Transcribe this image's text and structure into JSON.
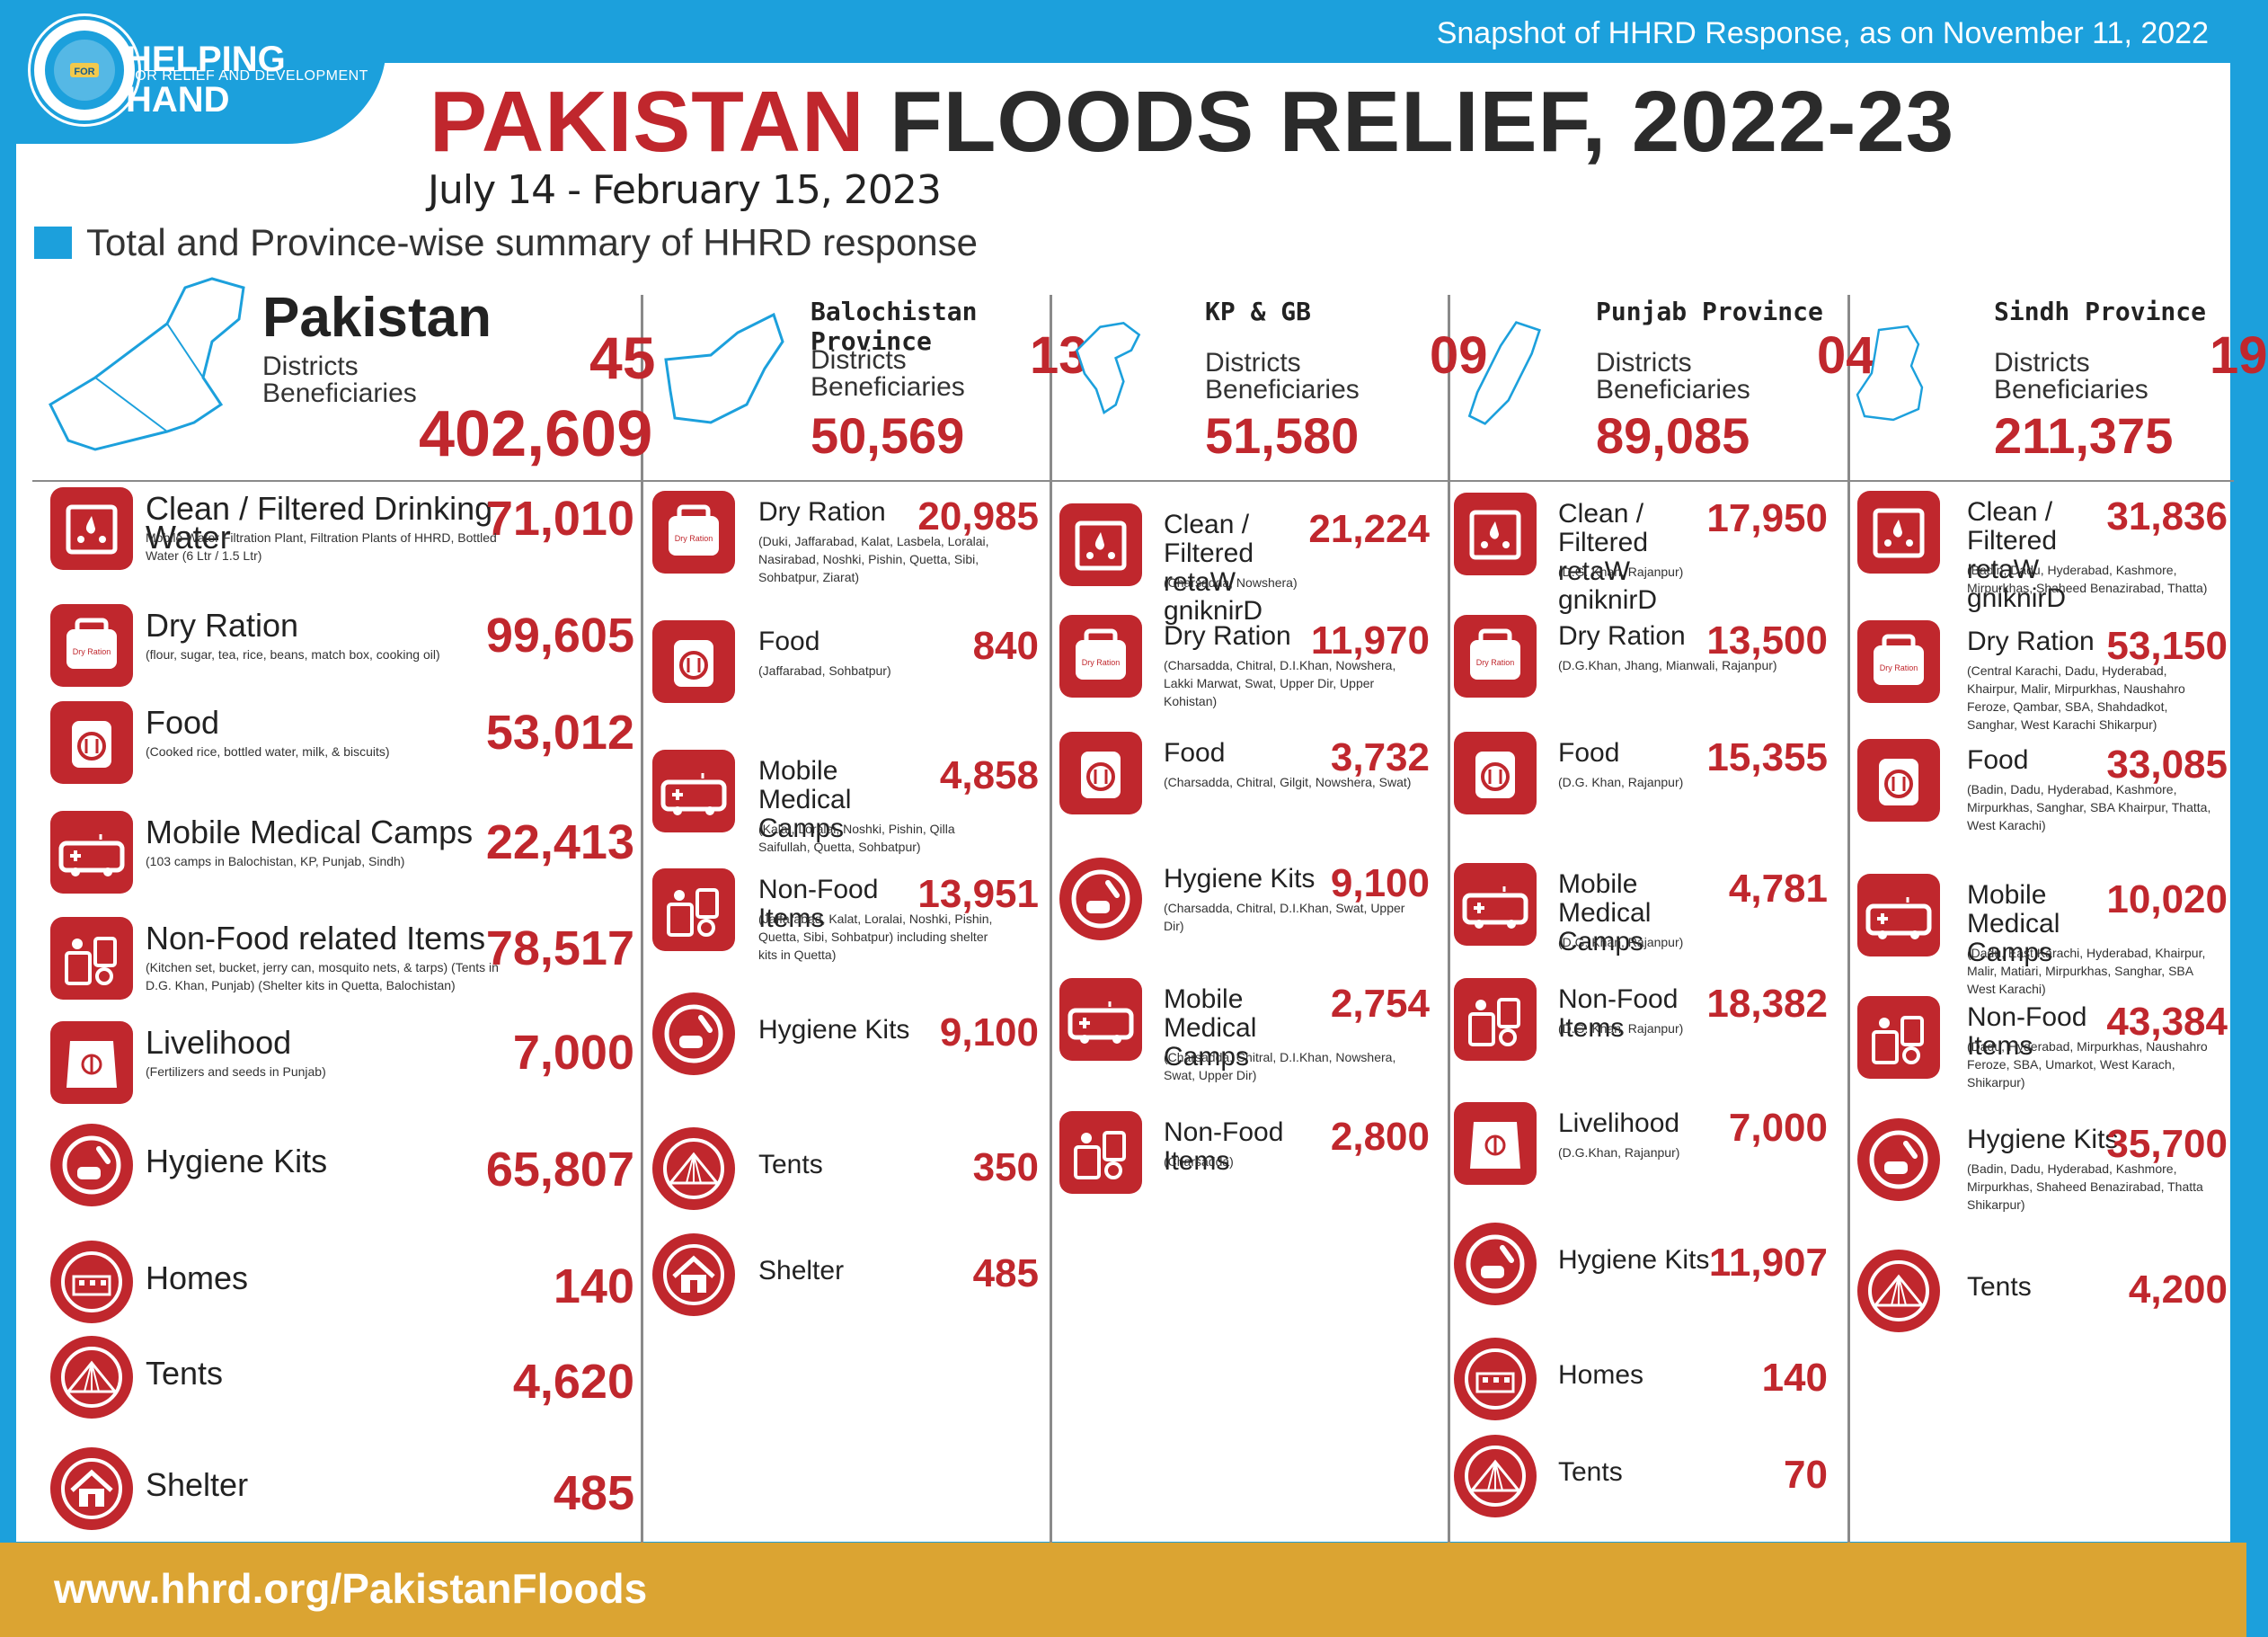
{
  "header": {
    "org_name": "HELPING HAND",
    "org_sub": "FOR RELIEF AND DEVELOPMENT",
    "snapshot": "Snapshot of HHRD Response, as on November 11, 2022",
    "title_red": "PAKISTAN",
    "title_dark": "FLOODS RELIEF, 2022-23",
    "date_range": "July 14 - February 15, 2023",
    "summary": "Total and Province-wise summary of HHRD response",
    "accent": "#1ca0dc",
    "red": "#c0272d"
  },
  "labels": {
    "districts": "Districts",
    "beneficiaries": "Beneficiaries"
  },
  "regions": [
    {
      "name": "Pakistan",
      "districts": "45",
      "beneficiaries": "402,609",
      "items": [
        {
          "icon": "water-icon",
          "name": "Clean / Filtered Drinking Water",
          "value": "71,010",
          "note": "Mobile Water Filtration Plant, Filtration Plants of HHRD, Bottled Water (6 Ltr / 1.5 Ltr)"
        },
        {
          "icon": "dry-ration-icon",
          "name": "Dry Ration",
          "value": "99,605",
          "note": "(flour, sugar, tea, rice, beans, match box, cooking oil)"
        },
        {
          "icon": "food-icon",
          "name": "Food",
          "value": "53,012",
          "note": "(Cooked rice, bottled water, milk, & biscuits)"
        },
        {
          "icon": "ambulance-icon",
          "name": "Mobile Medical Camps",
          "value": "22,413",
          "note": "(103 camps in Balochistan, KP, Punjab, Sindh)"
        },
        {
          "icon": "non-food-icon",
          "name": "Non-Food related Items",
          "value": "78,517",
          "note": "(Kitchen set, bucket, jerry can, mosquito nets, & tarps) (Tents in D.G. Khan, Punjab) (Shelter kits in Quetta, Balochistan)"
        },
        {
          "icon": "livelihood-icon",
          "name": "Livelihood",
          "value": "7,000",
          "note": "(Fertilizers and seeds in Punjab)"
        },
        {
          "icon": "hygiene-icon",
          "name": "Hygiene Kits",
          "value": "65,807",
          "note": ""
        },
        {
          "icon": "homes-icon",
          "name": "Homes",
          "value": "140",
          "note": ""
        },
        {
          "icon": "tent-icon",
          "name": "Tents",
          "value": "4,620",
          "note": ""
        },
        {
          "icon": "shelter-icon",
          "name": "Shelter",
          "value": "485",
          "note": ""
        }
      ]
    },
    {
      "name": "Balochistan Province",
      "districts": "13",
      "beneficiaries": "50,569",
      "items": [
        {
          "icon": "dry-ration-icon",
          "name": "Dry Ration",
          "value": "20,985",
          "note": "(Duki, Jaffarabad, Kalat, Lasbela, Loralai, Nasirabad, Noshki, Pishin, Quetta, Sibi, Sohbatpur, Ziarat)"
        },
        {
          "icon": "food-icon",
          "name": "Food",
          "value": "840",
          "note": "(Jaffarabad, Sohbatpur)"
        },
        {
          "icon": "ambulance-icon",
          "name": "Mobile Medical Camps",
          "value": "4,858",
          "note": "(Kalat, Loralai, Noshki, Pishin, Qilla Saifullah, Quetta, Sohbatpur)"
        },
        {
          "icon": "non-food-icon",
          "name": "Non-Food Items",
          "value": "13,951",
          "note": "(Jaffarabad, Kalat, Loralai, Noshki, Pishin, Quetta, Sibi, Sohbatpur) including shelter kits in Quetta)"
        },
        {
          "icon": "hygiene-icon",
          "name": "Hygiene Kits",
          "value": "9,100",
          "note": ""
        },
        {
          "icon": "tent-icon",
          "name": "Tents",
          "value": "350",
          "note": ""
        },
        {
          "icon": "shelter-icon",
          "name": "Shelter",
          "value": "485",
          "note": ""
        }
      ]
    },
    {
      "name": "KP & GB",
      "districts": "09",
      "beneficiaries": "51,580",
      "items": [
        {
          "icon": "water-icon",
          "name": "Clean / Filtered retaW gniknirD",
          "value": "21,224",
          "note": "(Charsadda, Nowshera)"
        },
        {
          "icon": "dry-ration-icon",
          "name": "Dry Ration",
          "value": "11,970",
          "note": "(Charsadda, Chitral, D.I.Khan, Nowshera, Lakki Marwat, Swat, Upper Dir, Upper Kohistan)"
        },
        {
          "icon": "food-icon",
          "name": "Food",
          "value": "3,732",
          "note": "(Charsadda, Chitral, Gilgit, Nowshera, Swat)"
        },
        {
          "icon": "hygiene-icon",
          "name": "Hygiene Kits",
          "value": "9,100",
          "note": "(Charsadda, Chitral, D.I.Khan, Swat, Upper Dir)"
        },
        {
          "icon": "ambulance-icon",
          "name": "Mobile Medical Camps",
          "value": "2,754",
          "note": "(Charsadda, Chitral, D.I.Khan, Nowshera, Swat, Upper Dir)"
        },
        {
          "icon": "non-food-icon",
          "name": "Non-Food Items",
          "value": "2,800",
          "note": "(Charsadda)"
        }
      ]
    },
    {
      "name": "Punjab Province",
      "districts": "04",
      "beneficiaries": "89,085",
      "items": [
        {
          "icon": "water-icon",
          "name": "Clean / Filtered retaW gniknirD",
          "value": "17,950",
          "note": "(D.G. Khan, Rajanpur)"
        },
        {
          "icon": "dry-ration-icon",
          "name": "Dry Ration",
          "value": "13,500",
          "note": "(D.G.Khan, Jhang, Mianwali, Rajanpur)"
        },
        {
          "icon": "food-icon",
          "name": "Food",
          "value": "15,355",
          "note": "(D.G. Khan, Rajanpur)"
        },
        {
          "icon": "ambulance-icon",
          "name": "Mobile Medical Camps",
          "value": "4,781",
          "note": "(D.G. Khan, Rajanpur)"
        },
        {
          "icon": "non-food-icon",
          "name": "Non-Food Items",
          "value": "18,382",
          "note": "(D.G. Khan, Rajanpur)"
        },
        {
          "icon": "livelihood-icon",
          "name": "Livelihood",
          "value": "7,000",
          "note": "(D.G.Khan, Rajanpur)"
        },
        {
          "icon": "hygiene-icon",
          "name": "Hygiene Kits",
          "value": "11,907",
          "note": ""
        },
        {
          "icon": "homes-icon",
          "name": "Homes",
          "value": "140",
          "note": ""
        },
        {
          "icon": "tent-icon",
          "name": "Tents",
          "value": "70",
          "note": ""
        }
      ]
    },
    {
      "name": "Sindh Province",
      "districts": "19",
      "beneficiaries": "211,375",
      "items": [
        {
          "icon": "water-icon",
          "name": "Clean / Filtered retaW gniknirD",
          "value": "31,836",
          "note": "(Badin, Dadu, Hyderabad, Kashmore, Mirpurkhas, Shaheed Benazirabad, Thatta)"
        },
        {
          "icon": "dry-ration-icon",
          "name": "Dry Ration",
          "value": "53,150",
          "note": "(Central Karachi, Dadu, Hyderabad, Khairpur, Malir, Mirpurkhas, Naushahro Feroze, Qambar, SBA, Shahdadkot, Sanghar, West Karachi Shikarpur)"
        },
        {
          "icon": "food-icon",
          "name": "Food",
          "value": "33,085",
          "note": "(Badin, Dadu, Hyderabad, Kashmore, Mirpurkhas, Sanghar, SBA Khairpur, Thatta, West Karachi)"
        },
        {
          "icon": "ambulance-icon",
          "name": "Mobile Medical Camps",
          "value": "10,020",
          "note": "(Dadu, East Karachi, Hyderabad, Khairpur, Malir, Matiari, Mirpurkhas, Sanghar, SBA West Karachi)"
        },
        {
          "icon": "non-food-icon",
          "name": "Non-Food Items",
          "value": "43,384",
          "note": "(Dadu, Hyderabad, Mirpurkhas, Naushahro Feroze, SBA, Umarkot, West Karach, Shikarpur)"
        },
        {
          "icon": "hygiene-icon",
          "name": "Hygiene Kits",
          "value": "35,700",
          "note": "(Badin, Dadu, Hyderabad, Kashmore, Mirpurkhas, Shaheed Benazirabad, Thatta Shikarpur)"
        },
        {
          "icon": "tent-icon",
          "name": "Tents",
          "value": "4,200",
          "note": ""
        }
      ]
    }
  ],
  "footer": {
    "url": "www.hhrd.org/PakistanFloods"
  }
}
